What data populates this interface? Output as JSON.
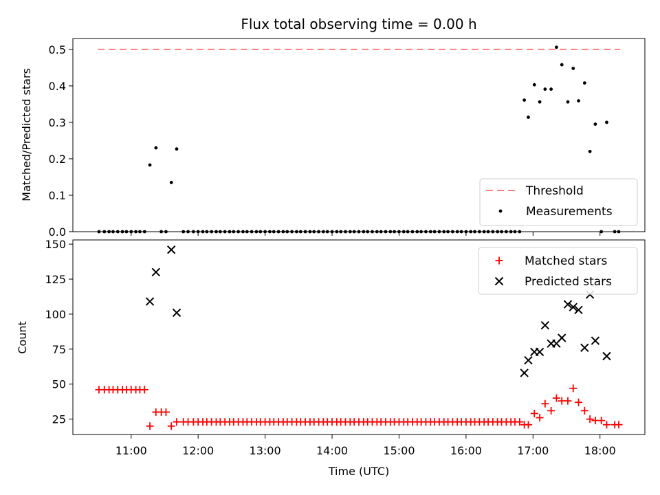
{
  "chart_data": {
    "type": "scatter",
    "title": "Flux total observing time = 0.00 h",
    "xlabel": "Time (UTC)",
    "xlim": [
      10.13,
      18.67
    ],
    "xticks": [
      11,
      12,
      13,
      14,
      15,
      16,
      17,
      18
    ],
    "xtick_labels": [
      "11:00",
      "12:00",
      "13:00",
      "14:00",
      "15:00",
      "16:00",
      "17:00",
      "18:00"
    ],
    "top_panel": {
      "ylabel": "Matched/Predicted stars",
      "ylim": [
        0,
        0.53
      ],
      "yticks": [
        0.0,
        0.1,
        0.2,
        0.3,
        0.4,
        0.5
      ],
      "ytick_labels": [
        "0.0",
        "0.1",
        "0.2",
        "0.3",
        "0.4",
        "0.5"
      ],
      "threshold": {
        "name": "Threshold",
        "value": 0.5,
        "x_range": [
          10.5,
          18.3
        ],
        "color": "#ff7f7f"
      },
      "measurements": {
        "name": "Measurements",
        "color": "#000000",
        "x": [
          10.52,
          10.6,
          10.67,
          10.73,
          10.8,
          10.87,
          10.93,
          11.0,
          11.07,
          11.13,
          11.2,
          11.28,
          11.37,
          11.45,
          11.52,
          11.6,
          11.68,
          11.78,
          11.85,
          11.93,
          12.0,
          12.07,
          12.13,
          12.2,
          12.27,
          12.33,
          12.4,
          12.47,
          12.53,
          12.6,
          12.67,
          12.73,
          12.8,
          12.87,
          12.93,
          13.0,
          13.07,
          13.13,
          13.2,
          13.27,
          13.33,
          13.4,
          13.47,
          13.53,
          13.6,
          13.67,
          13.73,
          13.8,
          13.87,
          13.93,
          14.0,
          14.07,
          14.13,
          14.2,
          14.27,
          14.33,
          14.4,
          14.47,
          14.53,
          14.6,
          14.67,
          14.73,
          14.8,
          14.87,
          14.93,
          15.0,
          15.07,
          15.13,
          15.2,
          15.27,
          15.33,
          15.4,
          15.47,
          15.53,
          15.6,
          15.67,
          15.73,
          15.8,
          15.87,
          15.93,
          16.0,
          16.07,
          16.13,
          16.2,
          16.27,
          16.33,
          16.4,
          16.47,
          16.53,
          16.6,
          16.67,
          16.73,
          16.8,
          16.87,
          16.93,
          17.02,
          17.1,
          17.18,
          17.27,
          17.35,
          17.43,
          17.52,
          17.6,
          17.68,
          17.77,
          17.85,
          17.93,
          18.02,
          18.1,
          18.22,
          18.28
        ],
        "y": [
          0,
          0,
          0,
          0,
          0,
          0,
          0,
          0,
          0,
          0,
          0,
          0.183,
          0.23,
          0,
          0,
          0.135,
          0.227,
          0,
          0,
          0,
          0,
          0,
          0,
          0,
          0,
          0,
          0,
          0,
          0,
          0,
          0,
          0,
          0,
          0,
          0,
          0,
          0,
          0,
          0,
          0,
          0,
          0,
          0,
          0,
          0,
          0,
          0,
          0,
          0,
          0,
          0,
          0,
          0,
          0,
          0,
          0,
          0,
          0,
          0,
          0,
          0,
          0,
          0,
          0,
          0,
          0,
          0,
          0,
          0,
          0,
          0,
          0,
          0,
          0,
          0,
          0,
          0,
          0,
          0,
          0,
          0,
          0,
          0,
          0,
          0,
          0,
          0,
          0,
          0,
          0,
          0,
          0,
          0,
          0.361,
          0.314,
          0.403,
          0.356,
          0.391,
          0.391,
          0.506,
          0.458,
          0.356,
          0.448,
          0.359,
          0.408,
          0.22,
          0.295,
          0,
          0.3,
          0,
          0
        ]
      }
    },
    "bottom_panel": {
      "ylabel": "Count",
      "ylim": [
        14,
        153
      ],
      "yticks": [
        25,
        50,
        75,
        100,
        125,
        150
      ],
      "ytick_labels": [
        "25",
        "50",
        "75",
        "100",
        "125",
        "150"
      ],
      "matched": {
        "name": "Matched stars",
        "color": "#ff0000",
        "x": [
          10.52,
          10.6,
          10.67,
          10.73,
          10.8,
          10.87,
          10.93,
          11.0,
          11.07,
          11.13,
          11.2,
          11.28,
          11.37,
          11.45,
          11.52,
          11.6,
          11.68,
          11.78,
          11.85,
          11.93,
          12.0,
          12.07,
          12.13,
          12.2,
          12.27,
          12.33,
          12.4,
          12.47,
          12.53,
          12.6,
          12.67,
          12.73,
          12.8,
          12.87,
          12.93,
          13.0,
          13.07,
          13.13,
          13.2,
          13.27,
          13.33,
          13.4,
          13.47,
          13.53,
          13.6,
          13.67,
          13.73,
          13.8,
          13.87,
          13.93,
          14.0,
          14.07,
          14.13,
          14.2,
          14.27,
          14.33,
          14.4,
          14.47,
          14.53,
          14.6,
          14.67,
          14.73,
          14.8,
          14.87,
          14.93,
          15.0,
          15.07,
          15.13,
          15.2,
          15.27,
          15.33,
          15.4,
          15.47,
          15.53,
          15.6,
          15.67,
          15.73,
          15.8,
          15.87,
          15.93,
          16.0,
          16.07,
          16.13,
          16.2,
          16.27,
          16.33,
          16.4,
          16.47,
          16.53,
          16.6,
          16.67,
          16.73,
          16.8,
          16.87,
          16.93,
          17.02,
          17.1,
          17.18,
          17.27,
          17.35,
          17.43,
          17.52,
          17.6,
          17.68,
          17.77,
          17.85,
          17.93,
          18.02,
          18.1,
          18.22,
          18.28
        ],
        "y": [
          46,
          46,
          46,
          46,
          46,
          46,
          46,
          46,
          46,
          46,
          46,
          20,
          30,
          30,
          30,
          20,
          23,
          23,
          23,
          23,
          23,
          23,
          23,
          23,
          23,
          23,
          23,
          23,
          23,
          23,
          23,
          23,
          23,
          23,
          23,
          23,
          23,
          23,
          23,
          23,
          23,
          23,
          23,
          23,
          23,
          23,
          23,
          23,
          23,
          23,
          23,
          23,
          23,
          23,
          23,
          23,
          23,
          23,
          23,
          23,
          23,
          23,
          23,
          23,
          23,
          23,
          23,
          23,
          23,
          23,
          23,
          23,
          23,
          23,
          23,
          23,
          23,
          23,
          23,
          23,
          23,
          23,
          23,
          23,
          23,
          23,
          23,
          23,
          23,
          23,
          23,
          23,
          23,
          21,
          21,
          29,
          26,
          36,
          31,
          40,
          38,
          38,
          47,
          37,
          31,
          25,
          24,
          24,
          21,
          21,
          21
        ]
      },
      "predicted": {
        "name": "Predicted stars",
        "color": "#000000",
        "x": [
          11.28,
          11.37,
          11.6,
          11.68,
          16.87,
          16.93,
          17.02,
          17.1,
          17.18,
          17.27,
          17.35,
          17.43,
          17.52,
          17.6,
          17.68,
          17.77,
          17.85,
          17.93,
          18.1
        ],
        "y": [
          109,
          130,
          146,
          101,
          58,
          67,
          73,
          73,
          92,
          79,
          79,
          83,
          107,
          105,
          103,
          76,
          114,
          81,
          70
        ]
      }
    }
  }
}
